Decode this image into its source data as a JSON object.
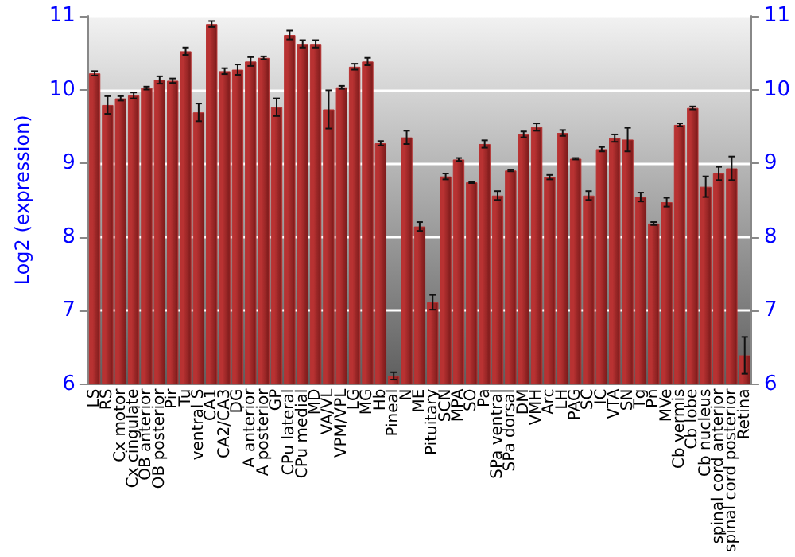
{
  "chart_data": {
    "type": "bar",
    "ylabel": "Log2 (expression)",
    "categories": [
      "LS",
      "RS",
      "Cx motor",
      "Cx cingulate",
      "OB anterior",
      "OB posterior",
      "Pir",
      "Tu",
      "ventral S",
      "CA1",
      "CA2/CA3",
      "DG",
      "A anterior",
      "A posterior",
      "GP",
      "CPu lateral",
      "CPu medial",
      "MD",
      "VA/VL",
      "VPM/VPL",
      "LG",
      "MG",
      "Hb",
      "Pineal",
      "N",
      "ME",
      "Pituitary",
      "SCN",
      "MPA",
      "SO",
      "Pa",
      "SPa ventral",
      "SPa dorsal",
      "DM",
      "VMH",
      "Arc",
      "LH",
      "PAG",
      "SC",
      "IC",
      "VTA",
      "SN",
      "Tg",
      "Pn",
      "MVe",
      "Cb vermis",
      "Cb lobe",
      "Cb nucleus",
      "spinal cord anterior",
      "spinal cord posterior",
      "Retina"
    ],
    "series": [
      {
        "color": "#b83232",
        "values": [
          10.22,
          9.79,
          9.88,
          9.92,
          10.02,
          10.13,
          10.12,
          10.52,
          9.69,
          10.89,
          10.25,
          10.27,
          10.38,
          10.43,
          9.76,
          10.74,
          10.62,
          10.62,
          9.73,
          10.03,
          10.31,
          10.38,
          9.27,
          6.11,
          9.35,
          8.14,
          7.11,
          8.82,
          9.05,
          8.74,
          9.26,
          8.56,
          8.9,
          9.39,
          9.49,
          8.81,
          9.41,
          9.06,
          8.56,
          9.19,
          9.34,
          9.32,
          8.54,
          8.18,
          8.47,
          9.52,
          9.75,
          8.68,
          8.86,
          8.93,
          6.39
        ],
        "errors": [
          0.03,
          0.12,
          0.03,
          0.04,
          0.02,
          0.05,
          0.03,
          0.05,
          0.12,
          0.04,
          0.04,
          0.07,
          0.06,
          0.02,
          0.12,
          0.06,
          0.05,
          0.05,
          0.26,
          0.02,
          0.04,
          0.05,
          0.03,
          0.05,
          0.09,
          0.06,
          0.1,
          0.04,
          0.02,
          0.01,
          0.05,
          0.06,
          0.01,
          0.04,
          0.05,
          0.03,
          0.04,
          0.01,
          0.06,
          0.03,
          0.05,
          0.16,
          0.06,
          0.02,
          0.06,
          0.02,
          0.02,
          0.14,
          0.09,
          0.16,
          0.25
        ]
      }
    ],
    "ylim": [
      6,
      11
    ],
    "yticks": [
      6,
      7,
      8,
      9,
      10,
      11
    ],
    "y2lim": [
      6,
      11
    ],
    "y2ticks": [
      6,
      7,
      8,
      9,
      10,
      11
    ],
    "grid": "y"
  }
}
